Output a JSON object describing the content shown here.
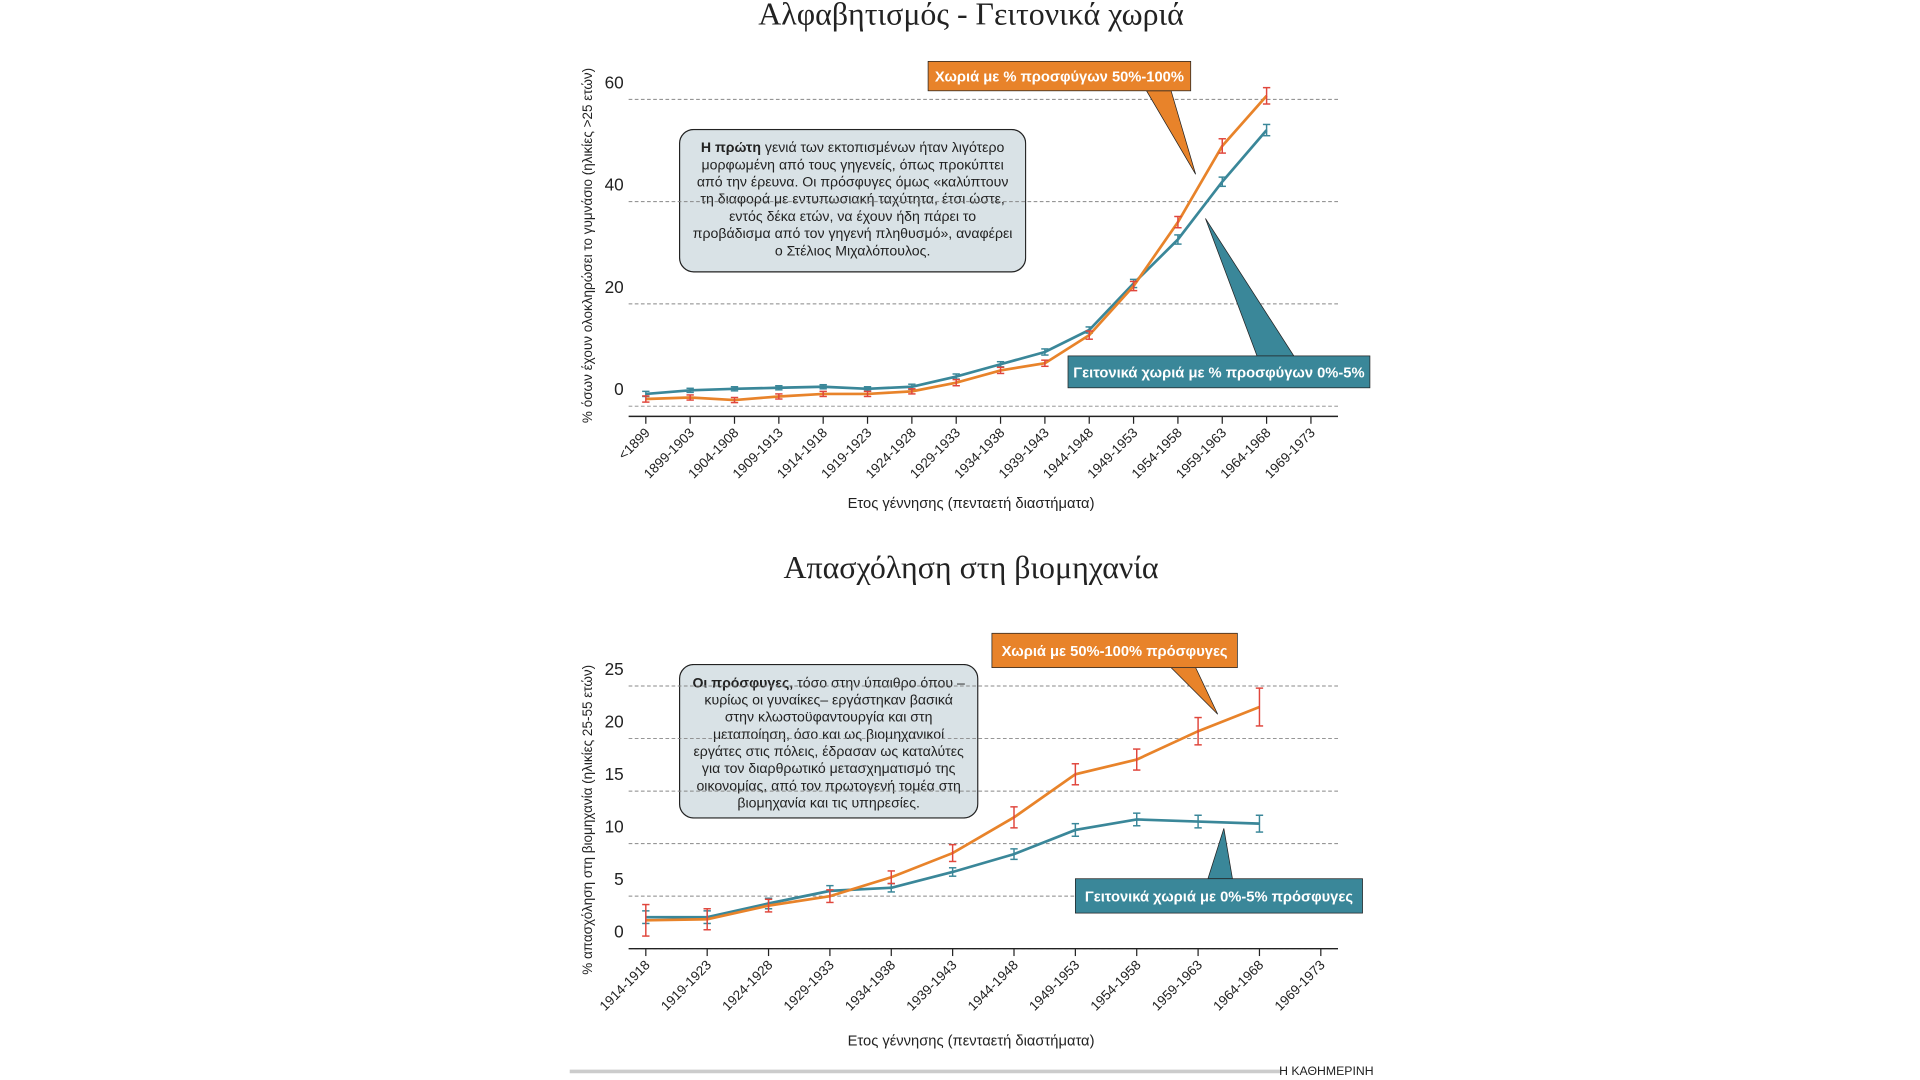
{
  "chart_data": [
    {
      "type": "line",
      "title": "Αλφαβητισμός - Γειτονικά χωριά",
      "ylabel": "% όσων έχουν ολοκληρώσει το γυμνάσιο (ηλικίες >25 ετών)",
      "xlabel": "Ετος γέννησης (πενταετή διαστήματα)",
      "categories": [
        "<1899",
        "1899-1903",
        "1904-1908",
        "1909-1913",
        "1914-1918",
        "1919-1923",
        "1924-1928",
        "1929-1933",
        "1934-1938",
        "1939-1943",
        "1944-1948",
        "1949-1953",
        "1954-1958",
        "1959-1963",
        "1964-1968",
        "1969-1973"
      ],
      "ylim": [
        -2,
        66
      ],
      "yticks": [
        0,
        20,
        40,
        60
      ],
      "grid": true,
      "note": {
        "bold": "Η πρώτη",
        "text": "γενιά των εκτοπισμένων ήταν λιγότερο μορφωμένη από τους γηγενείς, όπως προκύπτει από την έρευνα. Οι πρόσφυγες όμως «καλύπτουν τη διαφορά με εντυπωσιακή ταχύτητα, έτσι ώστε, εντός δέκα ετών, να έχουν ήδη πάρει το προβάδισμα από τον γηγενή πληθυσμό», αναφέρει ο Στέλιος Μιχαλόπουλος."
      },
      "series": [
        {
          "name": "Γειτονικά χωριά με % προσφύγων 0%-5%",
          "color": "#3a8799",
          "error_color": "#3a8799",
          "values": [
            2.4,
            3.1,
            3.4,
            3.6,
            3.8,
            3.4,
            3.8,
            5.8,
            8.2,
            10.6,
            14.9,
            24.0,
            32.6,
            43.9,
            54.0,
            null
          ],
          "errors": [
            0.5,
            0.4,
            0.4,
            0.4,
            0.4,
            0.4,
            0.5,
            0.5,
            0.5,
            0.6,
            0.6,
            0.8,
            0.9,
            0.9,
            1.1,
            null
          ]
        },
        {
          "name": "Χωριά με % προσφύγων 50%-100%",
          "color": "#e8832a",
          "error_color": "#e0463c",
          "values": [
            1.4,
            1.7,
            1.2,
            1.9,
            2.4,
            2.4,
            2.9,
            4.6,
            7.0,
            8.4,
            13.9,
            23.5,
            36.0,
            50.9,
            60.7,
            null
          ],
          "errors": [
            0.6,
            0.5,
            0.5,
            0.5,
            0.5,
            0.5,
            0.5,
            0.6,
            0.6,
            0.6,
            0.8,
            0.9,
            1.1,
            1.4,
            1.6,
            null
          ]
        }
      ]
    },
    {
      "type": "line",
      "title": "Απασχόληση στη βιομηχανία",
      "ylabel": "% απασχόληση στη βιομηχανία (ηλικίες 25-55 ετών)",
      "xlabel": "Ετος γέννησης (πενταετή διαστήματα)",
      "categories": [
        "1914-1918",
        "1919-1923",
        "1924-1928",
        "1929-1933",
        "1934-1938",
        "1939-1943",
        "1944-1948",
        "1949-1953",
        "1954-1958",
        "1959-1963",
        "1964-1968",
        "1969-1973"
      ],
      "ylim": [
        0,
        28
      ],
      "yticks": [
        0,
        5,
        10,
        15,
        20,
        25
      ],
      "grid": true,
      "note": {
        "bold": "Οι πρόσφυγες,",
        "text": "τόσο στην ύπαιθρο όπου –κυρίως οι γυναίκες– εργάστηκαν βασικά στην κλωστοϋφαντουργία και στη μεταποίηση, όσο και ως βιομηχανικοί εργάτες στις πόλεις, έδρασαν ως καταλύτες για τον διαρθρωτικό μετασχηματισμό της οικονομίας, από τον πρωτογενή τομέα στη βιομηχανία και τις υπηρεσίες."
      },
      "series": [
        {
          "name": "Γειτονικά χωριά με 0%-5% πρόσφυγες",
          "color": "#3a8799",
          "error_color": "#3a8799",
          "values": [
            3.0,
            3.0,
            4.3,
            5.5,
            5.8,
            7.3,
            9.0,
            11.3,
            12.3,
            12.1,
            11.9,
            null
          ],
          "errors": [
            0.6,
            0.6,
            0.5,
            0.5,
            0.4,
            0.4,
            0.5,
            0.6,
            0.6,
            0.6,
            0.8,
            null
          ]
        },
        {
          "name": "Χωριά με 50%-100% πρόσφυγες",
          "color": "#e8832a",
          "error_color": "#e0463c",
          "values": [
            2.7,
            2.8,
            4.1,
            5.0,
            6.8,
            9.1,
            12.5,
            16.6,
            18.0,
            20.7,
            23.0,
            null
          ],
          "errors": [
            1.5,
            1.0,
            0.6,
            0.6,
            0.6,
            0.8,
            1.0,
            1.0,
            1.0,
            1.3,
            1.8,
            null
          ]
        }
      ]
    }
  ],
  "footer": "Η ΚΑΘΗΜΕΡΙΝΗ"
}
